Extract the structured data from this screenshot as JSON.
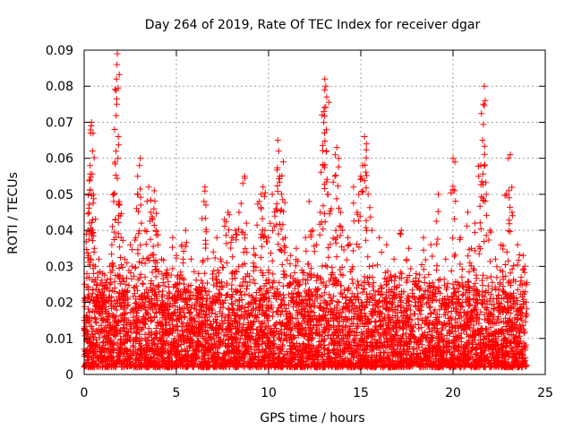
{
  "chart_data": {
    "type": "scatter",
    "title": "Day 264 of 2019, Rate Of TEC Index for receiver dgar",
    "xlabel": "GPS time / hours",
    "ylabel": "ROTI / TECUs",
    "xlim": [
      0,
      25
    ],
    "ylim": [
      0,
      0.09
    ],
    "x_ticks": [
      0,
      5,
      10,
      15,
      20,
      25
    ],
    "x_tick_labels": [
      "0",
      "5",
      "10",
      "15",
      "20",
      "25"
    ],
    "y_ticks": [
      0,
      0.01,
      0.02,
      0.03,
      0.04,
      0.05,
      0.06,
      0.07,
      0.08,
      0.09
    ],
    "y_tick_labels": [
      "0",
      "0.01",
      "0.02",
      "0.03",
      "0.04",
      "0.05",
      "0.06",
      "0.07",
      "0.08",
      "0.09"
    ],
    "grid": true,
    "marker": "+",
    "series": [
      {
        "name": "ROTI",
        "color": "#ff0000",
        "points": [
          [
            0.1,
            0.012
          ],
          [
            0.15,
            0.028
          ],
          [
            0.2,
            0.04
          ],
          [
            0.25,
            0.033
          ],
          [
            0.3,
            0.054
          ],
          [
            0.32,
            0.058
          ],
          [
            0.35,
            0.067
          ],
          [
            0.38,
            0.069
          ],
          [
            0.4,
            0.07
          ],
          [
            0.45,
            0.062
          ],
          [
            0.5,
            0.05
          ],
          [
            0.55,
            0.035
          ],
          [
            0.6,
            0.03
          ],
          [
            0.7,
            0.025
          ],
          [
            0.8,
            0.032
          ],
          [
            0.9,
            0.022
          ],
          [
            1.0,
            0.028
          ],
          [
            1.1,
            0.02
          ],
          [
            1.2,
            0.024
          ],
          [
            1.4,
            0.03
          ],
          [
            1.5,
            0.036
          ],
          [
            1.6,
            0.05
          ],
          [
            1.65,
            0.068
          ],
          [
            1.7,
            0.043
          ],
          [
            1.75,
            0.082
          ],
          [
            1.78,
            0.086
          ],
          [
            1.8,
            0.089
          ],
          [
            1.85,
            0.066
          ],
          [
            1.9,
            0.048
          ],
          [
            1.95,
            0.044
          ],
          [
            2.0,
            0.038
          ],
          [
            2.2,
            0.032
          ],
          [
            2.5,
            0.036
          ],
          [
            2.6,
            0.03
          ],
          [
            2.8,
            0.038
          ],
          [
            2.9,
            0.055
          ],
          [
            3.0,
            0.058
          ],
          [
            3.05,
            0.06
          ],
          [
            3.1,
            0.042
          ],
          [
            3.3,
            0.04
          ],
          [
            3.5,
            0.052
          ],
          [
            3.6,
            0.045
          ],
          [
            3.7,
            0.043
          ],
          [
            3.8,
            0.051
          ],
          [
            3.9,
            0.04
          ],
          [
            4.0,
            0.036
          ],
          [
            4.2,
            0.032
          ],
          [
            4.5,
            0.029
          ],
          [
            4.8,
            0.038
          ],
          [
            5.0,
            0.033
          ],
          [
            5.3,
            0.036
          ],
          [
            5.5,
            0.04
          ],
          [
            5.8,
            0.032
          ],
          [
            6.2,
            0.028
          ],
          [
            6.5,
            0.048
          ],
          [
            6.55,
            0.052
          ],
          [
            6.6,
            0.047
          ],
          [
            7.0,
            0.034
          ],
          [
            7.2,
            0.038
          ],
          [
            7.4,
            0.032
          ],
          [
            7.6,
            0.043
          ],
          [
            7.8,
            0.045
          ],
          [
            8.0,
            0.038
          ],
          [
            8.2,
            0.04
          ],
          [
            8.4,
            0.045
          ],
          [
            8.6,
            0.053
          ],
          [
            8.7,
            0.055
          ],
          [
            8.8,
            0.042
          ],
          [
            9.2,
            0.035
          ],
          [
            9.5,
            0.048
          ],
          [
            9.6,
            0.05
          ],
          [
            9.7,
            0.052
          ],
          [
            9.8,
            0.04
          ],
          [
            10.0,
            0.038
          ],
          [
            10.2,
            0.05
          ],
          [
            10.4,
            0.046
          ],
          [
            10.5,
            0.065
          ],
          [
            10.55,
            0.062
          ],
          [
            10.6,
            0.055
          ],
          [
            10.7,
            0.05
          ],
          [
            10.8,
            0.059
          ],
          [
            10.9,
            0.038
          ],
          [
            11.2,
            0.033
          ],
          [
            11.5,
            0.035
          ],
          [
            11.8,
            0.029
          ],
          [
            12.0,
            0.038
          ],
          [
            12.2,
            0.048
          ],
          [
            12.4,
            0.04
          ],
          [
            12.6,
            0.036
          ],
          [
            12.8,
            0.045
          ],
          [
            12.9,
            0.072
          ],
          [
            12.95,
            0.058
          ],
          [
            13.0,
            0.073
          ],
          [
            13.05,
            0.082
          ],
          [
            13.1,
            0.08
          ],
          [
            13.15,
            0.077
          ],
          [
            13.2,
            0.05
          ],
          [
            13.4,
            0.046
          ],
          [
            13.6,
            0.055
          ],
          [
            13.7,
            0.063
          ],
          [
            13.8,
            0.06
          ],
          [
            13.9,
            0.045
          ],
          [
            14.0,
            0.04
          ],
          [
            14.3,
            0.038
          ],
          [
            14.6,
            0.052
          ],
          [
            14.8,
            0.045
          ],
          [
            15.0,
            0.055
          ],
          [
            15.1,
            0.058
          ],
          [
            15.2,
            0.066
          ],
          [
            15.3,
            0.064
          ],
          [
            15.4,
            0.05
          ],
          [
            15.6,
            0.04
          ],
          [
            16.0,
            0.038
          ],
          [
            16.4,
            0.036
          ],
          [
            16.8,
            0.032
          ],
          [
            17.2,
            0.04
          ],
          [
            17.6,
            0.035
          ],
          [
            18.0,
            0.028
          ],
          [
            18.4,
            0.038
          ],
          [
            18.8,
            0.036
          ],
          [
            19.2,
            0.05
          ],
          [
            19.6,
            0.032
          ],
          [
            20.0,
            0.06
          ],
          [
            20.1,
            0.059
          ],
          [
            20.4,
            0.038
          ],
          [
            20.8,
            0.045
          ],
          [
            21.0,
            0.035
          ],
          [
            21.2,
            0.042
          ],
          [
            21.4,
            0.055
          ],
          [
            21.5,
            0.058
          ],
          [
            21.6,
            0.065
          ],
          [
            21.65,
            0.075
          ],
          [
            21.7,
            0.08
          ],
          [
            21.75,
            0.076
          ],
          [
            21.8,
            0.05
          ],
          [
            22.0,
            0.04
          ],
          [
            22.3,
            0.032
          ],
          [
            22.6,
            0.036
          ],
          [
            22.9,
            0.05
          ],
          [
            23.0,
            0.06
          ],
          [
            23.1,
            0.061
          ],
          [
            23.2,
            0.045
          ],
          [
            23.5,
            0.036
          ],
          [
            23.8,
            0.033
          ],
          [
            23.9,
            0.03
          ]
        ],
        "baseline_band": {
          "description": "dense cloud of points across the full 0–24 h span",
          "x_range": [
            0,
            24
          ],
          "y_range": [
            0.002,
            0.03
          ]
        }
      }
    ]
  }
}
